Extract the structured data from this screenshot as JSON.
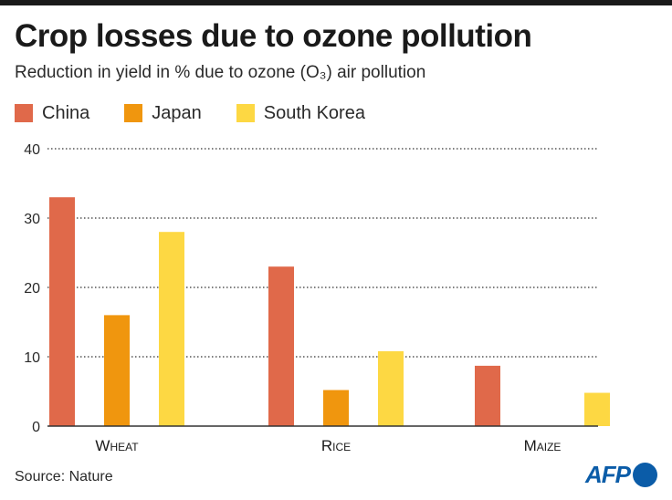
{
  "header": {
    "title": "Crop losses due to ozone pollution",
    "subtitle": "Reduction in yield in % due to ozone (O₃) air pollution"
  },
  "footer": {
    "source": "Source: Nature",
    "logo_text": "AFP"
  },
  "colors": {
    "china": "#e0694a",
    "japan": "#f0960e",
    "south_korea": "#fdd843",
    "brand": "#0b5ca8"
  },
  "chart_data": {
    "type": "bar",
    "title": "Crop losses due to ozone pollution",
    "subtitle": "Reduction in yield in % due to ozone (O₃) air pollution",
    "categories": [
      "Wheat",
      "Rice",
      "Maize"
    ],
    "series": [
      {
        "name": "China",
        "color": "#e0694a",
        "values": [
          33,
          23,
          8.7
        ]
      },
      {
        "name": "Japan",
        "color": "#f0960e",
        "values": [
          16,
          5.2,
          0
        ]
      },
      {
        "name": "South Korea",
        "color": "#fdd843",
        "values": [
          28,
          10.8,
          4.8
        ]
      }
    ],
    "ylim": [
      0,
      40
    ],
    "yticks": [
      0,
      10,
      20,
      30,
      40
    ],
    "grid": true,
    "legend": "top-left",
    "xlabel": "",
    "ylabel": ""
  }
}
